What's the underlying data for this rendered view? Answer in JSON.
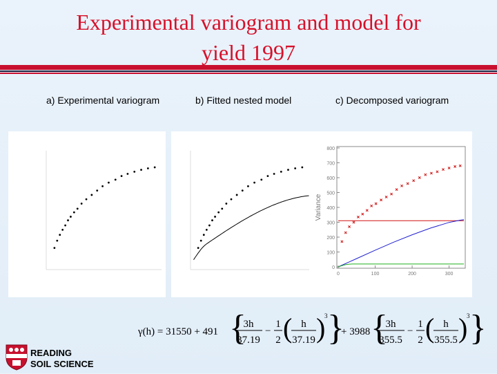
{
  "title": {
    "line1": "Experimental variogram and model for",
    "line2": "yield 1997"
  },
  "panels": {
    "a": "a) Experimental variogram",
    "b": "b) Fitted nested model",
    "c": "c) Decomposed variogram"
  },
  "logo": {
    "line1": "READING",
    "line2": "SOIL SCIENCE"
  },
  "colors": {
    "accent": "#c8102e",
    "points": "#000000",
    "nugget": "#d01010",
    "long_range": "#2020d0",
    "short_range": "#20b020"
  },
  "chart_data": [
    {
      "type": "scatter",
      "title": "a) Experimental variogram",
      "points": [
        [
          14,
          32400
        ],
        [
          22,
          32900
        ],
        [
          30,
          33300
        ],
        [
          38,
          33650
        ],
        [
          46,
          33950
        ],
        [
          54,
          34300
        ],
        [
          62,
          34550
        ],
        [
          72,
          34850
        ],
        [
          82,
          35100
        ],
        [
          94,
          35450
        ],
        [
          108,
          35750
        ],
        [
          124,
          36050
        ],
        [
          140,
          36350
        ],
        [
          156,
          36650
        ],
        [
          174,
          36900
        ],
        [
          194,
          37100
        ],
        [
          212,
          37350
        ],
        [
          230,
          37500
        ],
        [
          250,
          37650
        ],
        [
          270,
          37780
        ],
        [
          290,
          37880
        ],
        [
          310,
          37950
        ]
      ],
      "xlim": [
        0,
        330
      ],
      "ylim": [
        31000,
        39000
      ]
    },
    {
      "type": "line",
      "title": "b) Fitted nested model",
      "points": [
        [
          14,
          32400
        ],
        [
          22,
          32900
        ],
        [
          30,
          33300
        ],
        [
          38,
          33650
        ],
        [
          46,
          33950
        ],
        [
          54,
          34300
        ],
        [
          62,
          34550
        ],
        [
          72,
          34850
        ],
        [
          82,
          35100
        ],
        [
          94,
          35450
        ],
        [
          108,
          35750
        ],
        [
          124,
          36050
        ],
        [
          140,
          36350
        ],
        [
          156,
          36650
        ],
        [
          174,
          36900
        ],
        [
          194,
          37100
        ],
        [
          212,
          37350
        ],
        [
          230,
          37500
        ],
        [
          250,
          37650
        ],
        [
          270,
          37780
        ],
        [
          290,
          37880
        ],
        [
          310,
          37950
        ]
      ],
      "model": {
        "nugget": 31550,
        "short_sill": 491,
        "short_range": 37.19,
        "long_sill": 3988,
        "long_range": 355.5
      },
      "xlim": [
        0,
        330
      ],
      "ylim": [
        31000,
        39000
      ]
    },
    {
      "type": "line",
      "title": "c) Decomposed variogram",
      "xlabel": "",
      "ylabel": "Variance",
      "x_ticks": [
        "0",
        "100",
        "200",
        "300"
      ],
      "y_ticks": [
        "0",
        "100",
        "200",
        "300",
        "400",
        "500",
        "600",
        "700",
        "800"
      ],
      "xlim": [
        0,
        340
      ],
      "ylim": [
        0,
        800
      ],
      "series": [
        {
          "component": "experimental",
          "x": [
            10,
            20,
            30,
            42,
            54,
            66,
            78,
            90,
            102,
            116,
            130,
            144,
            158,
            172,
            188,
            204,
            220,
            236,
            252,
            268,
            284,
            300,
            316,
            330
          ],
          "y": [
            170,
            230,
            270,
            300,
            335,
            355,
            380,
            410,
            425,
            450,
            470,
            490,
            520,
            545,
            560,
            580,
            600,
            620,
            630,
            640,
            655,
            665,
            675,
            680
          ]
        },
        {
          "component": "nugget",
          "x": [
            0,
            340
          ],
          "y": [
            310,
            310
          ]
        },
        {
          "component": "long_range",
          "x": [
            0,
            50,
            100,
            150,
            200,
            250,
            300,
            330,
            340
          ],
          "y": [
            0,
            56,
            112,
            166,
            216,
            261,
            299,
            314,
            317
          ]
        },
        {
          "component": "short_range",
          "x": [
            0,
            10,
            20,
            30,
            37.19,
            340
          ],
          "y": [
            0,
            8,
            15,
            18,
            19,
            19
          ]
        }
      ]
    }
  ],
  "formula": {
    "lhs": "γ(h) = 31550 + 491",
    "term1_frac1_num": "3h",
    "term1_frac1_den": "37.19",
    "term1_half_num": "1",
    "term1_half_den": "2",
    "term1_frac2_num": "h",
    "term1_frac2_den": "37.19",
    "exponent": "3",
    "plus2": "+ 3988",
    "term2_frac1_num": "3h",
    "term2_frac1_den": "355.5",
    "term2_half_num": "1",
    "term2_half_den": "2",
    "term2_frac2_num": "h",
    "term2_frac2_den": "355.5",
    "exponent2": "3"
  }
}
